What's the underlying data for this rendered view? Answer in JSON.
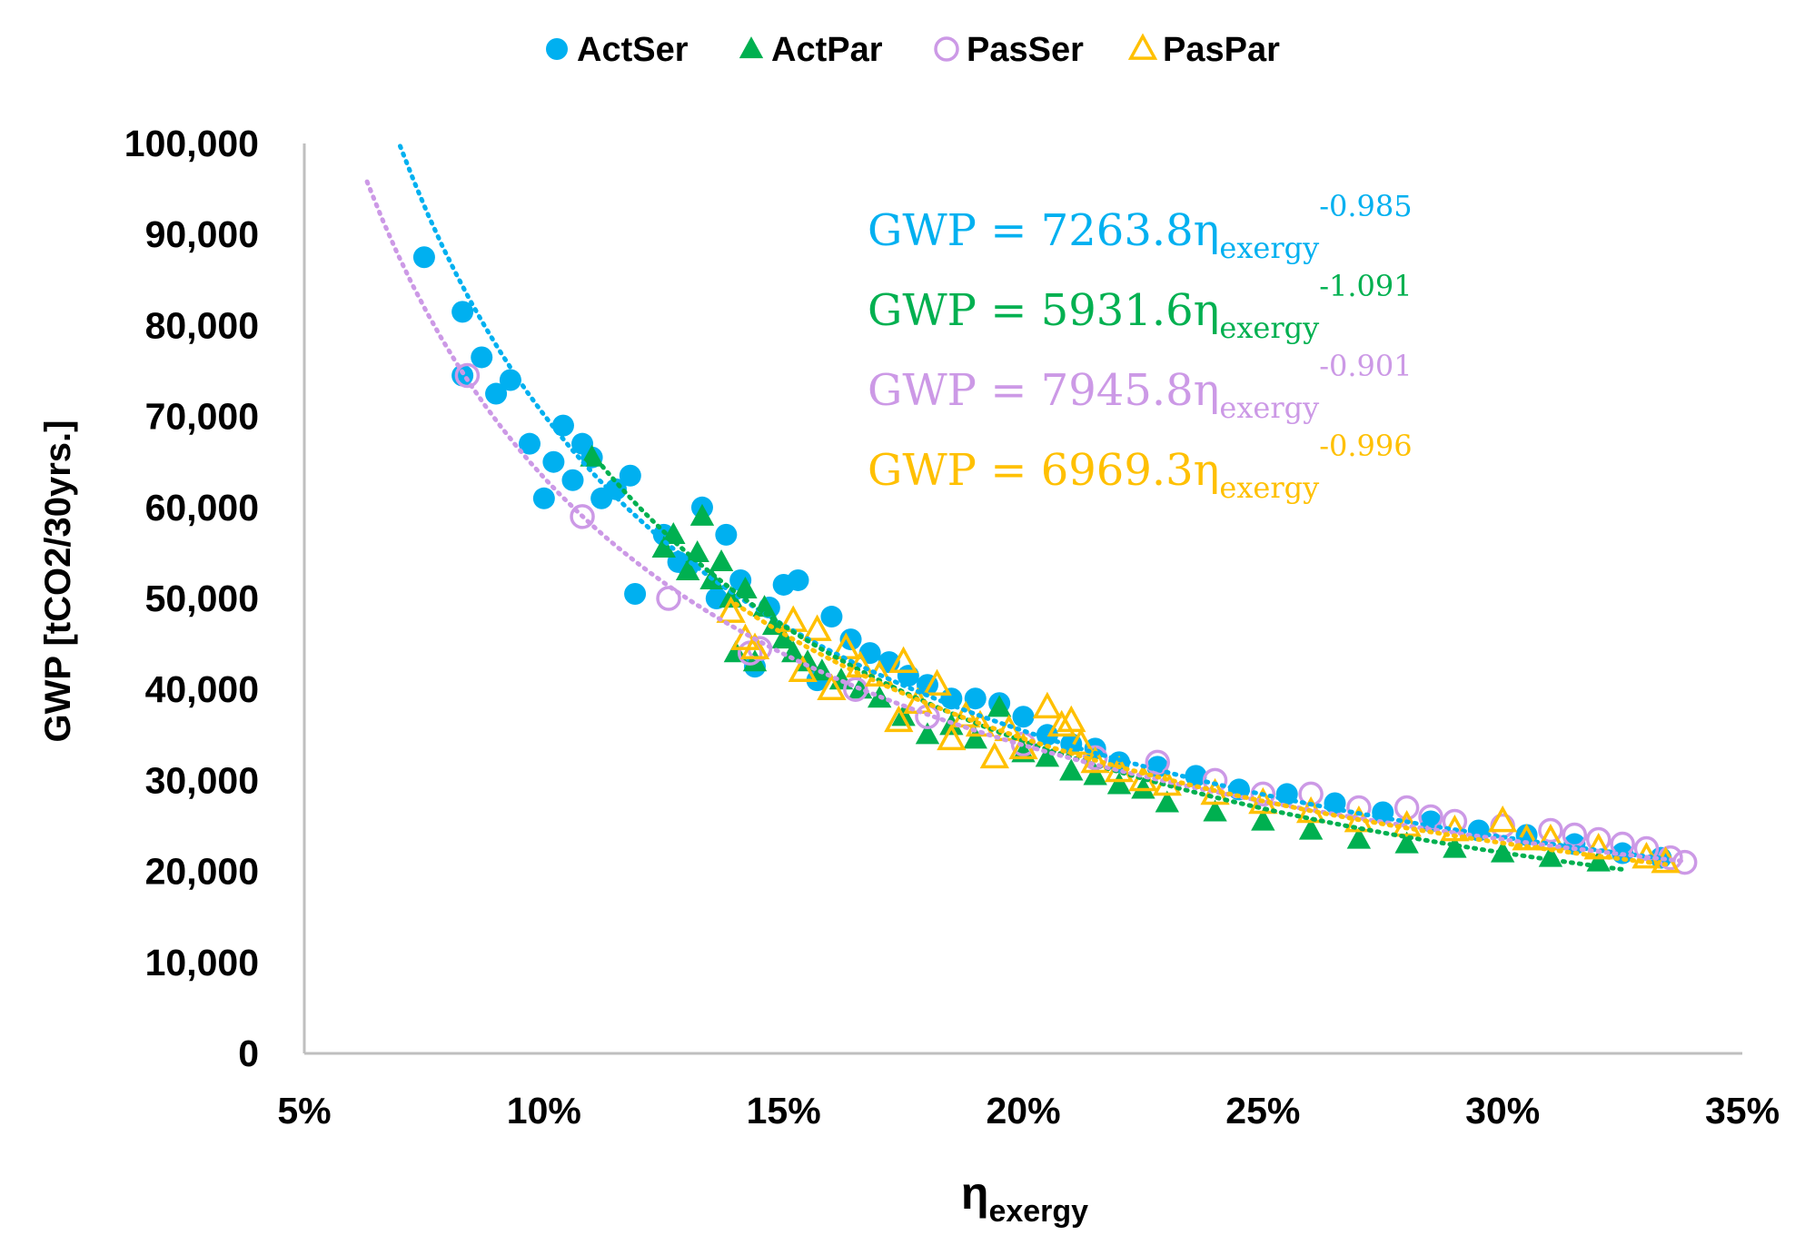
{
  "chart_data": {
    "type": "scatter",
    "xlabel": "η",
    "xlabel_sub": "exergy",
    "ylabel": "GWP [tCO2/30yrs.]",
    "xlim": [
      0.05,
      0.35
    ],
    "ylim": [
      0,
      100000
    ],
    "x_ticks": [
      "5%",
      "10%",
      "15%",
      "20%",
      "25%",
      "30%",
      "35%"
    ],
    "y_ticks": [
      "0",
      "10,000",
      "20,000",
      "30,000",
      "40,000",
      "50,000",
      "60,000",
      "70,000",
      "80,000",
      "90,000",
      "100,000"
    ],
    "legend_position": "top-center",
    "series": [
      {
        "name": "ActSer",
        "marker": "circle-filled",
        "color": "#00b0f0",
        "trend": {
          "prefix": "GWP = ",
          "coef_text": "7263.8",
          "sub": "exergy",
          "exp_text": "-0.985",
          "a": 7263.8,
          "b": -0.985,
          "x_from": 0.07,
          "x_to": 0.335
        },
        "x": [
          0.075,
          0.083,
          0.083,
          0.087,
          0.09,
          0.093,
          0.097,
          0.1,
          0.102,
          0.104,
          0.106,
          0.108,
          0.11,
          0.112,
          0.115,
          0.118,
          0.119,
          0.125,
          0.128,
          0.13,
          0.133,
          0.136,
          0.138,
          0.141,
          0.144,
          0.147,
          0.15,
          0.153,
          0.157,
          0.16,
          0.164,
          0.168,
          0.172,
          0.176,
          0.18,
          0.185,
          0.19,
          0.195,
          0.2,
          0.205,
          0.21,
          0.215,
          0.22,
          0.228,
          0.236,
          0.245,
          0.255,
          0.265,
          0.275,
          0.285,
          0.295,
          0.305,
          0.315,
          0.325,
          0.333
        ],
        "y": [
          87500,
          81500,
          74500,
          76500,
          72500,
          74000,
          67000,
          61000,
          65000,
          69000,
          63000,
          67000,
          65500,
          61000,
          62000,
          63500,
          50500,
          57000,
          54000,
          53500,
          60000,
          50000,
          57000,
          52000,
          42500,
          49000,
          51500,
          52000,
          41000,
          48000,
          45500,
          44000,
          43000,
          41500,
          40500,
          39000,
          39000,
          38500,
          37000,
          35000,
          34000,
          33500,
          32000,
          31500,
          30500,
          29000,
          28500,
          27500,
          26500,
          25500,
          24500,
          24000,
          23000,
          22000,
          21500
        ]
      },
      {
        "name": "ActPar",
        "marker": "triangle-filled",
        "color": "#00b050",
        "trend": {
          "prefix": "GWP = ",
          "coef_text": "5931.6",
          "sub": "exergy",
          "exp_text": "-1.091",
          "a": 5931.6,
          "b": -1.091,
          "x_from": 0.11,
          "x_to": 0.325
        },
        "x": [
          0.11,
          0.125,
          0.127,
          0.13,
          0.132,
          0.133,
          0.135,
          0.137,
          0.139,
          0.14,
          0.142,
          0.144,
          0.146,
          0.148,
          0.15,
          0.152,
          0.155,
          0.158,
          0.162,
          0.166,
          0.17,
          0.175,
          0.18,
          0.185,
          0.19,
          0.195,
          0.2,
          0.205,
          0.21,
          0.215,
          0.22,
          0.225,
          0.23,
          0.24,
          0.25,
          0.26,
          0.27,
          0.28,
          0.29,
          0.3,
          0.31,
          0.32
        ],
        "y": [
          65500,
          55500,
          57000,
          53000,
          55000,
          59000,
          52000,
          54000,
          50000,
          44000,
          51000,
          43000,
          49000,
          47000,
          45500,
          44000,
          43000,
          42000,
          41000,
          40000,
          39000,
          37000,
          35000,
          36000,
          34500,
          38000,
          33000,
          32500,
          31000,
          30500,
          29500,
          29000,
          27500,
          26500,
          25500,
          24500,
          23500,
          23000,
          22500,
          22000,
          21500,
          21000
        ]
      },
      {
        "name": "PasSer",
        "marker": "circle-open",
        "color": "#cc99e6",
        "trend": {
          "prefix": "GWP = ",
          "coef_text": "7945.8",
          "sub": "exergy",
          "exp_text": "-0.901",
          "a": 7945.8,
          "b": -0.901,
          "x_from": 0.06,
          "x_to": 0.338
        },
        "x": [
          0.084,
          0.108,
          0.126,
          0.143,
          0.145,
          0.165,
          0.18,
          0.2,
          0.215,
          0.228,
          0.24,
          0.25,
          0.26,
          0.27,
          0.28,
          0.285,
          0.29,
          0.3,
          0.31,
          0.315,
          0.32,
          0.325,
          0.33,
          0.335,
          0.338
        ],
        "y": [
          74500,
          59000,
          50000,
          44000,
          44500,
          40000,
          37000,
          34000,
          32500,
          32000,
          30000,
          28500,
          28500,
          27000,
          27000,
          26000,
          25500,
          25000,
          24500,
          24000,
          23500,
          23000,
          22500,
          21500,
          21000
        ]
      },
      {
        "name": "PasPar",
        "marker": "triangle-open",
        "color": "#ffc000",
        "trend": {
          "prefix": "GWP = ",
          "coef_text": "6969.3",
          "sub": "exergy",
          "exp_text": "-0.996",
          "a": 6969.3,
          "b": -0.996,
          "x_from": 0.14,
          "x_to": 0.334
        },
        "x": [
          0.139,
          0.142,
          0.144,
          0.152,
          0.154,
          0.157,
          0.16,
          0.163,
          0.166,
          0.17,
          0.174,
          0.175,
          0.178,
          0.182,
          0.185,
          0.188,
          0.191,
          0.194,
          0.197,
          0.2,
          0.205,
          0.208,
          0.21,
          0.212,
          0.215,
          0.22,
          0.225,
          0.23,
          0.24,
          0.25,
          0.26,
          0.27,
          0.28,
          0.29,
          0.3,
          0.305,
          0.31,
          0.32,
          0.33,
          0.334
        ],
        "y": [
          48500,
          45500,
          44500,
          47500,
          42000,
          46500,
          40000,
          44500,
          42500,
          41500,
          36500,
          43000,
          38500,
          40500,
          34500,
          37000,
          36000,
          32500,
          35500,
          33500,
          38000,
          36000,
          36500,
          34000,
          32000,
          31000,
          30000,
          29500,
          28500,
          27500,
          26500,
          25500,
          25000,
          24500,
          25500,
          23500,
          23500,
          22500,
          21500,
          21000
        ]
      }
    ]
  }
}
